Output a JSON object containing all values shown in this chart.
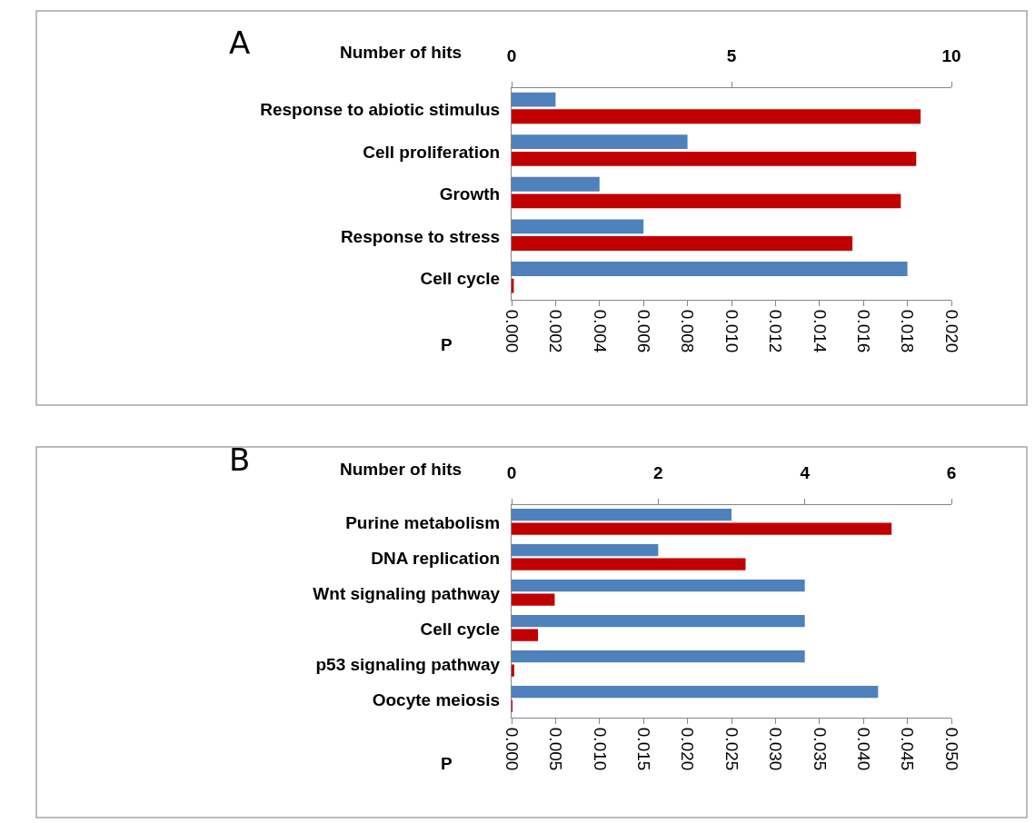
{
  "chart_data": [
    {
      "type": "bar",
      "orientation": "horizontal",
      "title": "A",
      "categories": [
        "Response to abiotic stimulus",
        "Cell proliferation",
        "Growth",
        "Response to stress",
        "Cell cycle"
      ],
      "series": [
        {
          "color": "#4f81bd",
          "axis": "x2",
          "values": [
            1,
            4,
            2,
            3,
            9
          ]
        },
        {
          "color": "#c00000",
          "values": [
            0.0186,
            0.0184,
            0.0177,
            0.0155,
            0.0001
          ]
        }
      ],
      "x2label": "Number of hits",
      "x2lim": [
        0,
        10
      ],
      "x2ticks": [
        0,
        5,
        10
      ],
      "xlabel": "P",
      "xlim": [
        0,
        0.02
      ],
      "xticks": [
        {
          "value": 0,
          "label": "0.000"
        },
        {
          "value": 0.002,
          "label": "0.002"
        },
        {
          "value": 0.004,
          "label": "0.004"
        },
        {
          "value": 0.006,
          "label": "0.006"
        },
        {
          "value": 0.008,
          "label": "0.008"
        },
        {
          "value": 0.01,
          "label": "0.010"
        },
        {
          "value": 0.012,
          "label": "0.012"
        },
        {
          "value": 0.014,
          "label": "0.014"
        },
        {
          "value": 0.016,
          "label": "0.016"
        },
        {
          "value": 0.018,
          "label": "0.018"
        },
        {
          "value": 0.02,
          "label": "0.020"
        }
      ],
      "grid": false
    },
    {
      "type": "bar",
      "orientation": "horizontal",
      "title": "B",
      "categories": [
        "Purine metabolism",
        "DNA replication",
        "Wnt signaling pathway",
        "Cell cycle",
        "p53 signaling pathway",
        "Oocyte meiosis"
      ],
      "series": [
        {
          "color": "#4f81bd",
          "axis": "x2",
          "values": [
            3,
            2,
            4,
            4,
            4,
            5
          ]
        },
        {
          "color": "#c00000",
          "values": [
            0.0432,
            0.0266,
            0.0049,
            0.003,
            0.0003,
            0.0001
          ]
        }
      ],
      "x2label": "Number of hits",
      "x2lim": [
        0,
        6
      ],
      "x2ticks": [
        0,
        2,
        4,
        6
      ],
      "xlabel": "P",
      "xlim": [
        0,
        0.05
      ],
      "xticks": [
        {
          "value": 0,
          "label": "0.000"
        },
        {
          "value": 0.005,
          "label": "0.005"
        },
        {
          "value": 0.01,
          "label": "0.010"
        },
        {
          "value": 0.015,
          "label": "0.015"
        },
        {
          "value": 0.02,
          "label": "0.020"
        },
        {
          "value": 0.025,
          "label": "0.025"
        },
        {
          "value": 0.03,
          "label": "0.030"
        },
        {
          "value": 0.035,
          "label": "0.035"
        },
        {
          "value": 0.04,
          "label": "0.040"
        },
        {
          "value": 0.045,
          "label": "0.045"
        },
        {
          "value": 0.05,
          "label": "0.050"
        }
      ],
      "grid": false
    }
  ]
}
